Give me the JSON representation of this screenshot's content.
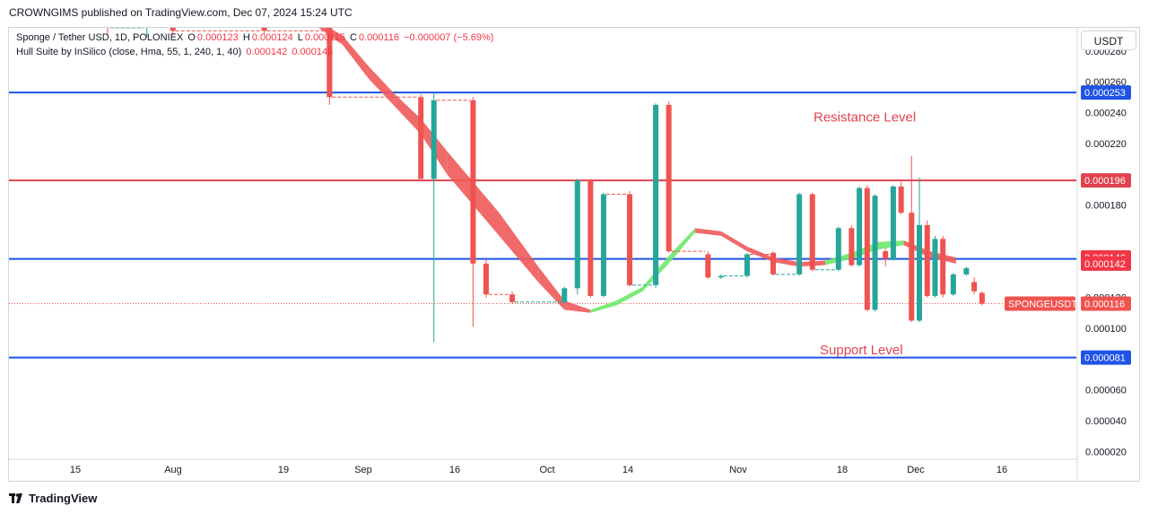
{
  "header": {
    "text": "CROWNGIMS published on TradingView.com, Dec 07, 2024 15:24 UTC"
  },
  "legend": {
    "symbol": "Sponge / Tether USD, 1D, POLONIEX",
    "o_label": "O",
    "o_value": "0.000123",
    "h_label": "H",
    "h_value": "0.000124",
    "l_label": "L",
    "l_value": "0.000115",
    "c_label": "C",
    "c_value": "0.000116",
    "change": "−0.000007 (−5.69%)",
    "indicator": "Hull Suite by InSilico (close, Hma, 55, 1, 240, 1, 40)",
    "ind_value1": "0.000142",
    "ind_value2": "0.000146"
  },
  "currency": "USDT",
  "footer": {
    "brand": "TradingView"
  },
  "colors": {
    "up": "#26a69a",
    "down": "#ef5350",
    "blue_line": "#1e53e5",
    "red_line": "#e0434f",
    "hull_red": "#f05a5a",
    "hull_green": "#6ee86a"
  },
  "chart_data": {
    "type": "candlestick",
    "ylim": [
      1.5e-05,
      0.000295
    ],
    "y_ticks": [
      "0.000020",
      "0.000040",
      "0.000060",
      "0.000100",
      "0.000120",
      "0.000180",
      "0.000220",
      "0.000240",
      "0.000260",
      "0.000280"
    ],
    "x_ticks": [
      "15",
      "Aug",
      "19",
      "Sep",
      "16",
      "Oct",
      "14",
      "Nov",
      "18",
      "Dec",
      "16"
    ],
    "levels": [
      {
        "value": 0.000253,
        "label": "0.000253",
        "color": "#1e53e5"
      },
      {
        "value": 0.000196,
        "label": "0.000196",
        "color": "#e0434f"
      },
      {
        "value": 0.000145,
        "label": "0.000145",
        "color": "#1e53e5"
      },
      {
        "value": 8.1e-05,
        "label": "0.000081",
        "color": "#1e53e5"
      }
    ],
    "price_tags": [
      {
        "value": 0.000146,
        "label": "0.000146",
        "color": "#f23645"
      },
      {
        "value": 0.000142,
        "label": "0.000142",
        "color": "#f23645"
      }
    ],
    "last_price": {
      "value": 0.000116,
      "label": "0.000116",
      "symbol": "SPONGEUSDT"
    },
    "annotations": [
      {
        "text": "Resistance Level",
        "value": 0.000237
      },
      {
        "text": "Support Level",
        "value": 8.6e-05
      }
    ],
    "candles": [
      {
        "i": 0,
        "o": 0.0003,
        "h": 0.00031,
        "l": 0.00029,
        "c": 0.000295
      },
      {
        "i": 3,
        "o": 0.000298,
        "h": 0.000305,
        "l": 0.000289,
        "c": 0.000302
      },
      {
        "i": 5,
        "o": 0.000302,
        "h": 0.00031,
        "l": 0.00029,
        "c": 0.000293
      },
      {
        "i": 12,
        "o": 0.0003,
        "h": 0.000305,
        "l": 0.000291,
        "c": 0.000293
      },
      {
        "i": 17,
        "o": 0.0003,
        "h": 0.000305,
        "l": 0.000245,
        "c": 0.00025
      },
      {
        "i": 24,
        "o": 0.00025,
        "h": 0.000252,
        "l": 0.000196,
        "c": 0.000197
      },
      {
        "i": 25,
        "o": 0.000197,
        "h": 0.000253,
        "l": 9.1e-05,
        "c": 0.000248
      },
      {
        "i": 28,
        "o": 0.000248,
        "h": 0.00025,
        "l": 0.000101,
        "c": 0.000142
      },
      {
        "i": 29,
        "o": 0.000142,
        "h": 0.000145,
        "l": 0.00012,
        "c": 0.000122
      },
      {
        "i": 31,
        "o": 0.000122,
        "h": 0.000124,
        "l": 0.000116,
        "c": 0.000117
      },
      {
        "i": 35,
        "o": 0.000117,
        "h": 0.000127,
        "l": 0.000116,
        "c": 0.000126
      },
      {
        "i": 36,
        "o": 0.000126,
        "h": 0.000197,
        "l": 0.000122,
        "c": 0.000196
      },
      {
        "i": 37,
        "o": 0.000196,
        "h": 0.000197,
        "l": 0.00012,
        "c": 0.000121
      },
      {
        "i": 38,
        "o": 0.000121,
        "h": 0.000188,
        "l": 0.00012,
        "c": 0.000187
      },
      {
        "i": 40,
        "o": 0.000187,
        "h": 0.000189,
        "l": 0.000127,
        "c": 0.000128
      },
      {
        "i": 42,
        "o": 0.000128,
        "h": 0.000246,
        "l": 0.000126,
        "c": 0.000245
      },
      {
        "i": 43,
        "o": 0.000245,
        "h": 0.000247,
        "l": 0.000149,
        "c": 0.00015
      },
      {
        "i": 46,
        "o": 0.000148,
        "h": 0.00015,
        "l": 0.000132,
        "c": 0.000133
      },
      {
        "i": 47,
        "o": 0.000133,
        "h": 0.000135,
        "l": 0.000132,
        "c": 0.000134
      },
      {
        "i": 49,
        "o": 0.000134,
        "h": 0.000149,
        "l": 0.000133,
        "c": 0.000148
      },
      {
        "i": 51,
        "o": 0.000149,
        "h": 0.00015,
        "l": 0.000134,
        "c": 0.000135
      },
      {
        "i": 53,
        "o": 0.000135,
        "h": 0.000188,
        "l": 0.000134,
        "c": 0.000187
      },
      {
        "i": 54,
        "o": 0.000187,
        "h": 0.000188,
        "l": 0.000137,
        "c": 0.000138
      },
      {
        "i": 56,
        "o": 0.000138,
        "h": 0.000166,
        "l": 0.000137,
        "c": 0.000165
      },
      {
        "i": 57,
        "o": 0.000165,
        "h": 0.000167,
        "l": 0.00014,
        "c": 0.000141
      },
      {
        "i": 57.6,
        "o": 0.000141,
        "h": 0.000192,
        "l": 0.00014,
        "c": 0.000191
      },
      {
        "i": 58.2,
        "o": 0.000191,
        "h": 0.000193,
        "l": 0.000111,
        "c": 0.000112
      },
      {
        "i": 58.8,
        "o": 0.000112,
        "h": 0.000187,
        "l": 0.000111,
        "c": 0.000186
      },
      {
        "i": 59.6,
        "o": 0.00015,
        "h": 0.000152,
        "l": 0.00014,
        "c": 0.000145
      },
      {
        "i": 60.2,
        "o": 0.000145,
        "h": 0.000193,
        "l": 0.000144,
        "c": 0.000192
      },
      {
        "i": 60.8,
        "o": 0.000192,
        "h": 0.000195,
        "l": 0.000174,
        "c": 0.000175
      },
      {
        "i": 61.6,
        "o": 0.000175,
        "h": 0.000212,
        "l": 0.000104,
        "c": 0.000105
      },
      {
        "i": 62.2,
        "o": 0.000105,
        "h": 0.000198,
        "l": 0.000104,
        "c": 0.000167
      },
      {
        "i": 62.8,
        "o": 0.000167,
        "h": 0.00017,
        "l": 0.00012,
        "c": 0.000121
      },
      {
        "i": 63.4,
        "o": 0.000121,
        "h": 0.00016,
        "l": 0.00012,
        "c": 0.000158
      },
      {
        "i": 64,
        "o": 0.000158,
        "h": 0.00016,
        "l": 0.00012,
        "c": 0.000122
      },
      {
        "i": 64.8,
        "o": 0.000122,
        "h": 0.000136,
        "l": 0.000121,
        "c": 0.000135
      },
      {
        "i": 65.8,
        "o": 0.000135,
        "h": 0.00014,
        "l": 0.000134,
        "c": 0.000139
      },
      {
        "i": 66.4,
        "o": 0.00013,
        "h": 0.000133,
        "l": 0.000122,
        "c": 0.000124
      },
      {
        "i": 67,
        "o": 0.000123,
        "h": 0.000124,
        "l": 0.000115,
        "c": 0.000116
      }
    ],
    "hull": [
      [
        0.0003,
        0.000296
      ],
      [
        0.00029,
        0.000284
      ],
      [
        0.00027,
        0.000262
      ],
      [
        0.000252,
        0.000244
      ],
      [
        0.000236,
        0.000226
      ],
      [
        0.000215,
        0.0002
      ],
      [
        0.000175,
        0.00016
      ],
      [
        0.00014,
        0.00013
      ],
      [
        0.000118,
        0.000112
      ],
      [
        0.000112,
        0.00011
      ],
      [
        0.000118,
        0.000115
      ],
      [
        0.000127,
        0.000124
      ],
      [
        0.000147,
        0.000142
      ],
      [
        0.000165,
        0.000162
      ],
      [
        0.000163,
        0.00016
      ],
      [
        0.000153,
        0.00015
      ],
      [
        0.000146,
        0.000143
      ],
      [
        0.000143,
        0.00014
      ],
      [
        0.000144,
        0.000141
      ],
      [
        0.000149,
        0.000145
      ],
      [
        0.000156,
        0.000151
      ],
      [
        0.000157,
        0.000154
      ],
      [
        0.00015,
        0.000146
      ],
      [
        0.000146,
        0.000142
      ]
    ],
    "hull_x": [
      16,
      18,
      20,
      22,
      24,
      26,
      30,
      33,
      35,
      37,
      39,
      41,
      43,
      45,
      47,
      49,
      51,
      53,
      55,
      57,
      59,
      61,
      63,
      65
    ],
    "hull_colors": [
      "red",
      "red",
      "red",
      "red",
      "red",
      "red",
      "red",
      "red",
      "red",
      "green",
      "green",
      "green",
      "green",
      "red",
      "red",
      "red",
      "red",
      "red",
      "green",
      "green",
      "green",
      "red",
      "red",
      "red"
    ]
  }
}
